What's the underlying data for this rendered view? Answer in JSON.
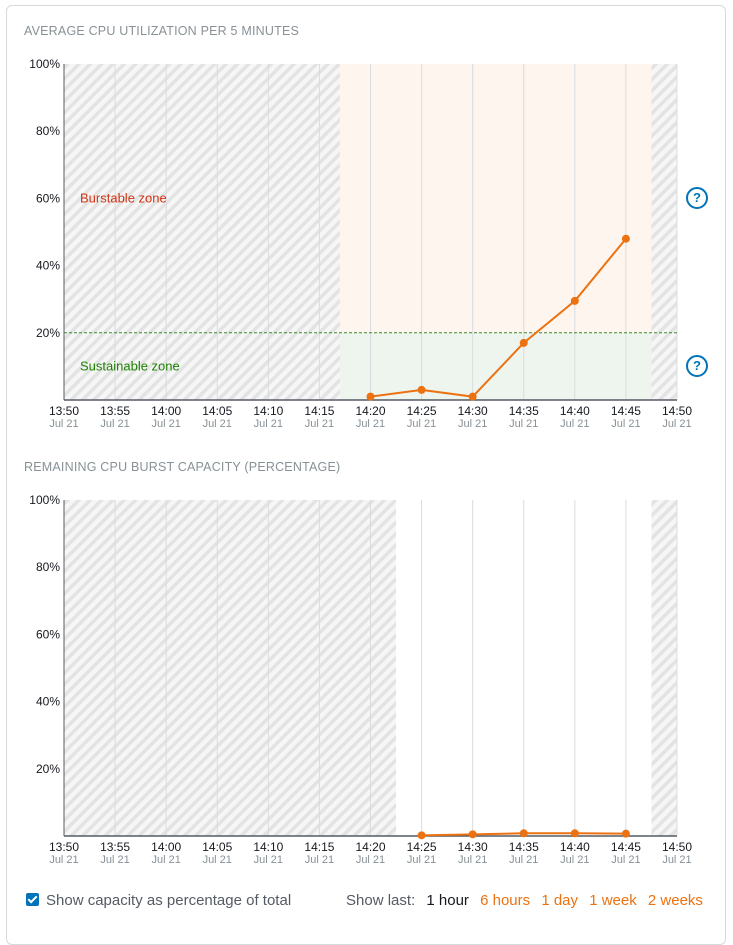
{
  "colors": {
    "series": "#ec7211",
    "burstable_bg": "#fdf5ee",
    "sustainable_bg": "#eef5ee",
    "threshold": "#3b8a2e",
    "burstable_text": "#d13212",
    "sustainable_text": "#1d8102",
    "grid": "#d9dcdf",
    "axis": "#545b64",
    "link": "#ec7211",
    "help": "#0073bb"
  },
  "help_icon": "question-circle-icon",
  "chart_data": [
    {
      "type": "line",
      "title": "AVERAGE CPU UTILIZATION PER 5 MINUTES",
      "x": [
        "13:50",
        "13:55",
        "14:00",
        "14:05",
        "14:10",
        "14:15",
        "14:20",
        "14:25",
        "14:30",
        "14:35",
        "14:40",
        "14:45",
        "14:50"
      ],
      "x_sublabel": "Jul 21",
      "ylim": [
        0,
        100
      ],
      "yticks": [
        "100%",
        "80%",
        "60%",
        "40%",
        "20%"
      ],
      "series": [
        {
          "points": [
            [
              "14:20",
              1
            ],
            [
              "14:25",
              3
            ],
            [
              "14:30",
              1
            ],
            [
              "14:35",
              17
            ],
            [
              "14:40",
              29.5
            ],
            [
              "14:45",
              48
            ]
          ]
        }
      ],
      "threshold": 20,
      "zones": {
        "burstable": "Burstable zone",
        "sustainable": "Sustainable zone"
      },
      "no_data_before": "14:17",
      "no_data_after": "14:47.5",
      "grid": true
    },
    {
      "type": "line",
      "title": "REMAINING CPU BURST CAPACITY (PERCENTAGE)",
      "x": [
        "13:50",
        "13:55",
        "14:00",
        "14:05",
        "14:10",
        "14:15",
        "14:20",
        "14:25",
        "14:30",
        "14:35",
        "14:40",
        "14:45",
        "14:50"
      ],
      "x_sublabel": "Jul 21",
      "ylim": [
        0,
        100
      ],
      "yticks": [
        "100%",
        "80%",
        "60%",
        "40%",
        "20%"
      ],
      "series": [
        {
          "points": [
            [
              "14:25",
              0.2
            ],
            [
              "14:30",
              0.5
            ],
            [
              "14:35",
              0.8
            ],
            [
              "14:40",
              0.8
            ],
            [
              "14:45",
              0.7
            ]
          ]
        }
      ],
      "no_data_before": "14:22.5",
      "no_data_after": "14:47.5",
      "grid": true
    }
  ],
  "footer": {
    "checkbox_label": "Show capacity as percentage of total",
    "checkbox_checked": true,
    "show_last_label": "Show last:",
    "options": [
      "1 hour",
      "6 hours",
      "1 day",
      "1 week",
      "2 weeks"
    ],
    "active_option": "1 hour"
  }
}
